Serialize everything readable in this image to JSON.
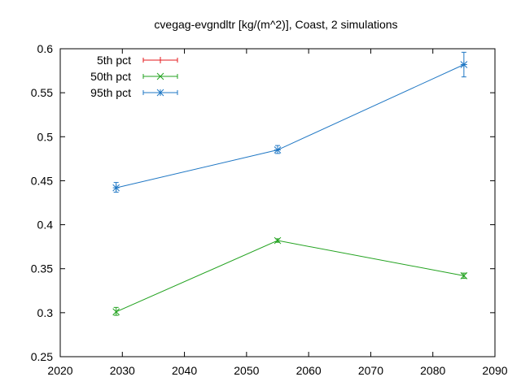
{
  "chart_data": {
    "type": "line",
    "title": "cvegag-evgndltr [kg/(m^2)], Coast, 2 simulations",
    "xlabel": "",
    "ylabel": "",
    "xlim": [
      2020,
      2090
    ],
    "ylim": [
      0.25,
      0.6
    ],
    "xticks": [
      2020,
      2030,
      2040,
      2050,
      2060,
      2070,
      2080,
      2090
    ],
    "xtick_labels": [
      "2020",
      "2030",
      "2040",
      "2050",
      "2060",
      "2070",
      "2080",
      "2090"
    ],
    "yticks": [
      0.25,
      0.3,
      0.35,
      0.4,
      0.45,
      0.5,
      0.55,
      0.6
    ],
    "ytick_labels": [
      "0.25",
      "0.3",
      "0.35",
      "0.4",
      "0.45",
      "0.5",
      "0.55",
      "0.6"
    ],
    "grid": false,
    "legend_position": "top-left",
    "series": [
      {
        "name": "5th pct",
        "color": "#e41a1c",
        "marker": "plus",
        "x": [],
        "y": [],
        "err_low": [],
        "err_high": []
      },
      {
        "name": "50th pct",
        "color": "#22a21f",
        "marker": "cross",
        "x": [
          2029,
          2055,
          2085
        ],
        "y": [
          0.301,
          0.382,
          0.342
        ],
        "err_low": [
          0.297,
          0.38,
          0.339
        ],
        "err_high": [
          0.306,
          0.384,
          0.345
        ]
      },
      {
        "name": "95th pct",
        "color": "#1f77c4",
        "marker": "star",
        "x": [
          2029,
          2055,
          2085
        ],
        "y": [
          0.442,
          0.485,
          0.582
        ],
        "err_low": [
          0.437,
          0.481,
          0.568
        ],
        "err_high": [
          0.448,
          0.49,
          0.596
        ]
      }
    ]
  }
}
